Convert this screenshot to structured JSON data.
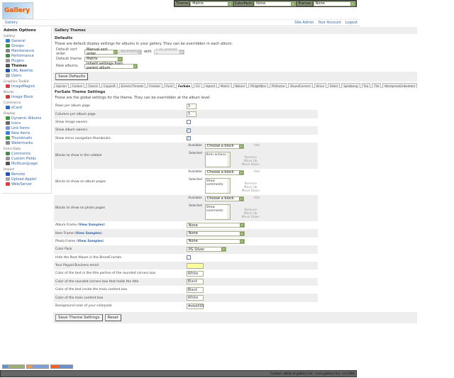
{
  "logo": {
    "text": "Gallery"
  },
  "topbar": {
    "theme_label": "Theme",
    "theme_value": "Matrix",
    "colorpack_label": "ColorPack",
    "colorpack_value": "None",
    "frames_label": "Frames",
    "frames_value": "None"
  },
  "breadcrumb": {
    "home": "Gallery",
    "links": [
      "Site Admin",
      "Your Account",
      "Logout"
    ]
  },
  "sidebar": {
    "title": "Admin Options",
    "groups": [
      {
        "name": "Gallery",
        "items": [
          {
            "label": "General"
          },
          {
            "label": "Groups"
          },
          {
            "label": "Maintenance"
          },
          {
            "label": "Performance"
          },
          {
            "label": "Plugins"
          },
          {
            "label": "Themes",
            "current": true
          },
          {
            "label": "URL Rewrite"
          },
          {
            "label": "Users"
          }
        ]
      },
      {
        "name": "Graphics Toolkit",
        "items": [
          {
            "label": "ImageMagick"
          }
        ]
      },
      {
        "name": "Blocks",
        "items": [
          {
            "label": "Image Block"
          }
        ]
      },
      {
        "name": "Commerce",
        "items": [
          {
            "label": "eCard"
          }
        ]
      },
      {
        "name": "Display",
        "items": [
          {
            "label": "Dynamic Albums"
          },
          {
            "label": "Icons"
          },
          {
            "label": "Link Items"
          },
          {
            "label": "New Items"
          },
          {
            "label": "Thumbnails"
          },
          {
            "label": "Watermarks"
          }
        ]
      },
      {
        "name": "Extra Data",
        "items": [
          {
            "label": "Comments"
          },
          {
            "label": "Custom Fields"
          },
          {
            "label": "MultiLanguage"
          }
        ]
      },
      {
        "name": "Import",
        "items": [
          {
            "label": "Remote"
          },
          {
            "label": "Upload Applet"
          },
          {
            "label": "Web/Server"
          }
        ]
      }
    ]
  },
  "main": {
    "title": "Gallery Themes",
    "defaults_heading": "Defaults",
    "defaults_desc": "These are default display settings for albums in your gallery. They can be overridden in each album.",
    "sort_label": "Default sort order",
    "sort_value": "Manual sort order",
    "sort_dir": "Ascending",
    "with_label": "with",
    "presort": "« no presort »",
    "theme_label": "Default theme",
    "theme_value": "Matrix",
    "new_albums_label": "New albums",
    "new_albums_value": "Inherit settings from parent album",
    "save_defaults": "Save Defaults",
    "tabs": [
      "Ajaxian",
      "Carbon",
      "Classic",
      "Copyleft",
      "EclecticThreads",
      "Flexible",
      "Fluid",
      "ForSale",
      "G1",
      "Hybrid",
      "Matrix",
      "Nature",
      "PGlightBox",
      "PGtheme",
      "RoundCorners",
      "Siriux",
      "Slider",
      "Splatbang",
      "Tea",
      "Tile",
      "WordpressEmbedded"
    ],
    "active_tab": "ForSale",
    "theme_heading": "ForSale Theme Settings",
    "theme_desc": "These are the global settings for the theme. They can be overridden at the album level.",
    "rows_label": "Rows per album page",
    "rows_value": "3",
    "cols_label": "Columns per album page",
    "cols_value": "3",
    "image_owners_label": "Show image owners",
    "image_owners": false,
    "album_owners_label": "Show album owners",
    "album_owners": true,
    "micro_label": "Show micro navigation thumbnails",
    "micro": true,
    "blocks": [
      {
        "label": "Blocks to show in the sidebar",
        "selected": "Item actions"
      },
      {
        "label": "Blocks to show on album pages",
        "selected": "Show comments"
      },
      {
        "label": "Blocks to show on photo pages",
        "selected": "Show comments"
      }
    ],
    "available_label": "Available",
    "selected_label": "Selected",
    "choose_block": "Choose a block",
    "add": "Add",
    "remove": "Remove",
    "move_up": "Move Up",
    "move_down": "Move Down",
    "view_samples": "View Samples",
    "album_frame_label": "Album Frame",
    "album_frame": "None",
    "item_frame_label": "Item Frame",
    "item_frame": "None",
    "photo_frame_label": "Photo Frame",
    "photo_frame": "None",
    "colorpack_label": "Color Pack",
    "colorpack": "PG Silver",
    "hide_root_label": "Hide the Root Album in the BreadCrumbs",
    "hide_root": false,
    "paypal_label": "Your Paypal Business email",
    "paypal": "",
    "title_text_label": "Color of the text in the title portion of the rounded corners box",
    "title_text": "White",
    "rounded_label": "Color of the rounded corners box that holds the title",
    "rounded": "Black",
    "content_text_label": "Color of the text inside the main content box",
    "content_text": "Black",
    "content_box_label": "Color of the main content box",
    "content_box": "White",
    "bg_label": "Background color of your colorpack",
    "bg": "#ebd095",
    "save_theme": "Save Theme Settings",
    "reset": "Reset"
  },
  "footer": "Contact: admin at gallery2.hu - www.gallery2.hu - (c) 2006"
}
